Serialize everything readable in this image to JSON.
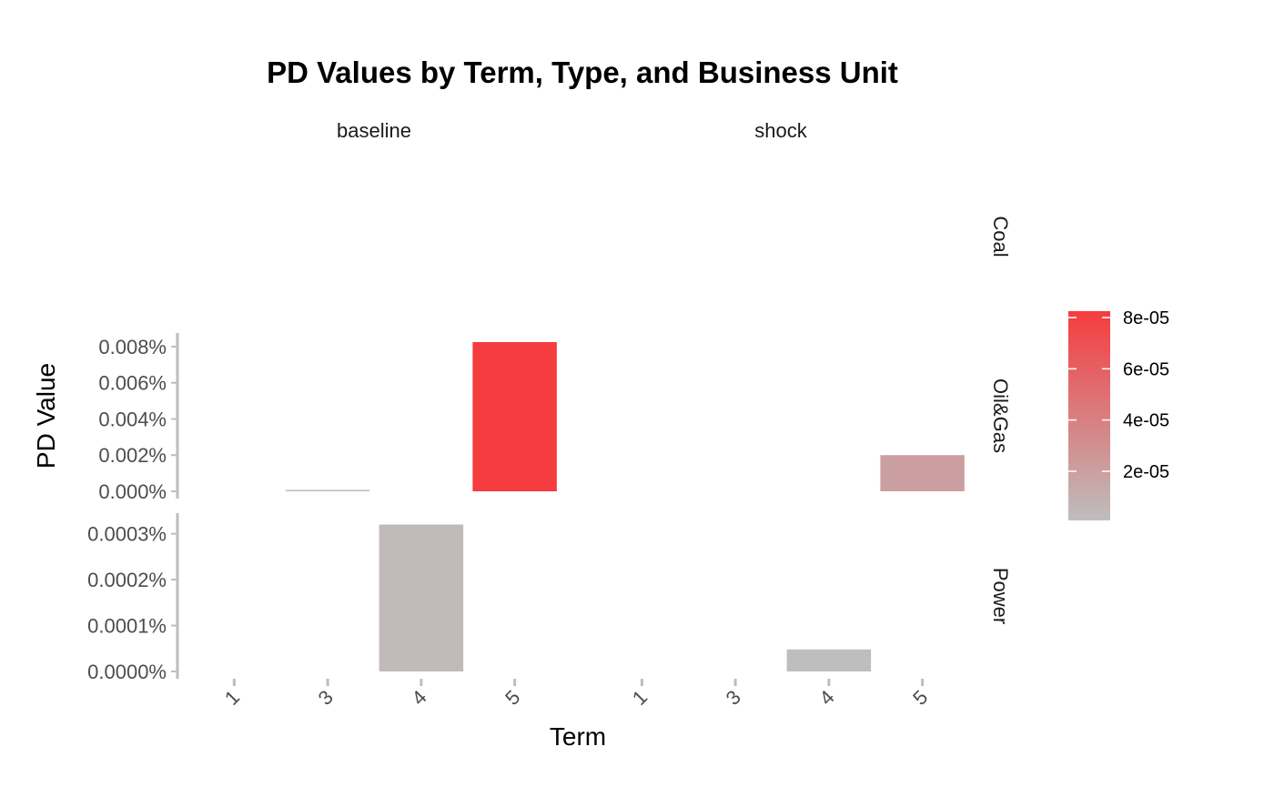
{
  "chart_data": {
    "type": "bar",
    "title": "PD Values by Term, Type, and Business Unit",
    "xlabel": "Term",
    "ylabel": "PD Value",
    "columns": [
      "baseline",
      "shock"
    ],
    "rows": [
      "Coal",
      "Oil&Gas",
      "Power"
    ],
    "x_categories": [
      "1",
      "3",
      "4",
      "5"
    ],
    "fill_legend": {
      "low_color": "#BEBEBE",
      "high_color": "#F53C3F",
      "range": [
        8e-07,
        8.25e-05
      ],
      "breaks": [
        2e-05,
        4e-05,
        6e-05,
        8e-05
      ],
      "labels": [
        "2e-05",
        "4e-05",
        "6e-05",
        "8e-05"
      ]
    },
    "panels": [
      {
        "row": "Oil&Gas",
        "ylim": [
          0,
          8.25e-05
        ],
        "y_ticks": [
          0,
          2e-05,
          4e-05,
          6e-05,
          8e-05
        ],
        "y_tick_labels": [
          "0.000%",
          "0.002%",
          "0.004%",
          "0.006%",
          "0.008%"
        ]
      },
      {
        "row": "Power",
        "ylim": [
          0,
          3.25e-06
        ],
        "y_ticks": [
          0,
          1e-06,
          2e-06,
          3e-06
        ],
        "y_tick_labels": [
          "0.0000%",
          "0.0001%",
          "0.0002%",
          "0.0003%"
        ]
      }
    ],
    "bars": [
      {
        "column": "baseline",
        "row": "Oil&Gas",
        "term": "3",
        "value": 8e-07
      },
      {
        "column": "baseline",
        "row": "Oil&Gas",
        "term": "5",
        "value": 8.25e-05
      },
      {
        "column": "shock",
        "row": "Oil&Gas",
        "term": "5",
        "value": 2e-05
      },
      {
        "column": "baseline",
        "row": "Power",
        "term": "4",
        "value": 3.2e-06
      },
      {
        "column": "shock",
        "row": "Power",
        "term": "4",
        "value": 4.8e-07
      }
    ]
  }
}
